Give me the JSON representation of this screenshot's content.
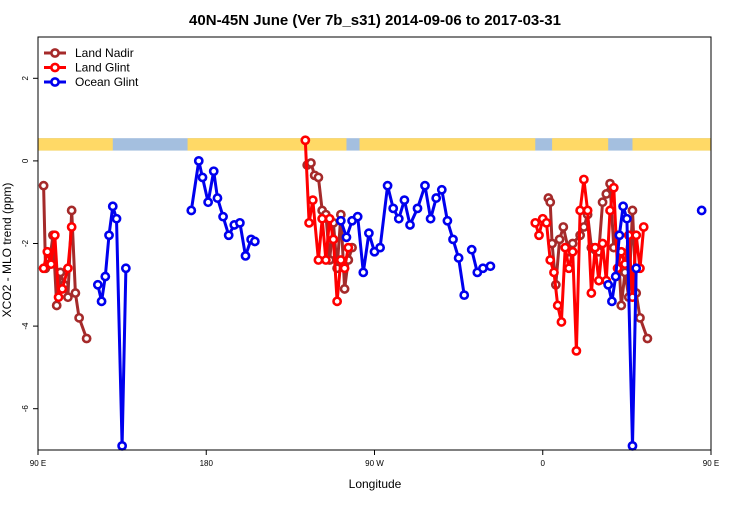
{
  "chart_data": {
    "type": "line",
    "title": "40N-45N June (Ver 7b_s31)   2014-09-06 to 2017-03-31",
    "xlabel": "Longitude",
    "ylabel": "XCO2 - MLO trend (ppm)",
    "xlim": [
      90,
      450
    ],
    "ylim": [
      -7,
      3
    ],
    "x_ticks": [
      {
        "value": 90,
        "label": "90 E"
      },
      {
        "value": 180,
        "label": "180"
      },
      {
        "value": 270,
        "label": "90 W"
      },
      {
        "value": 360,
        "label": "0"
      },
      {
        "value": 450,
        "label": "90 E"
      },
      {
        "value": 540,
        "label": "180"
      }
    ],
    "y_ticks": [
      {
        "value": 2,
        "label": "2"
      },
      {
        "value": 0,
        "label": "0"
      },
      {
        "value": -2,
        "label": "-2"
      },
      {
        "value": -4,
        "label": "-4"
      },
      {
        "value": -6,
        "label": "-6"
      }
    ],
    "grid": false,
    "legend_position": "top-left",
    "land_sea_strip": {
      "y_top": 0.55,
      "y_bottom": 0.25,
      "land_color": "#FFD966",
      "ocean_color": "#A4BFDF",
      "land_ranges": [
        [
          90,
          130
        ],
        [
          170,
          255
        ],
        [
          262,
          356
        ],
        [
          365,
          395
        ],
        [
          408,
          482
        ]
      ]
    },
    "series": [
      {
        "name": "Land Nadir",
        "color": "#A52A2A",
        "points": [
          [
            93,
            -0.6
          ],
          [
            94,
            -2.6
          ],
          [
            96,
            -2.5
          ],
          [
            98,
            -1.8
          ],
          [
            100,
            -3.5
          ],
          [
            102,
            -2.7
          ],
          [
            104,
            -3.0
          ],
          [
            106,
            -3.3
          ],
          [
            108,
            -1.2
          ],
          [
            110,
            -3.2
          ],
          [
            112,
            -3.8
          ],
          [
            116,
            -4.3
          ],
          null,
          [
            234,
            -0.1
          ],
          [
            236,
            -0.05
          ],
          [
            238,
            -0.35
          ],
          [
            240,
            -0.4
          ],
          [
            242,
            -1.2
          ],
          [
            244,
            -1.3
          ],
          [
            246,
            -2.4
          ],
          [
            248,
            -1.5
          ],
          [
            250,
            -2.6
          ],
          [
            252,
            -1.3
          ],
          [
            254,
            -3.1
          ],
          [
            256,
            -2.4
          ],
          [
            258,
            -2.1
          ],
          null,
          [
            363,
            -0.9
          ],
          [
            364,
            -1.0
          ],
          [
            365,
            -2.0
          ],
          [
            367,
            -3.0
          ],
          [
            369,
            -1.9
          ],
          [
            371,
            -1.6
          ],
          [
            374,
            -2.2
          ],
          [
            376,
            -2.0
          ],
          [
            380,
            -1.8
          ],
          [
            382,
            -1.6
          ],
          [
            384,
            -1.3
          ],
          [
            386,
            -2.1
          ],
          [
            388,
            -2.15
          ],
          [
            390,
            -2.2
          ],
          [
            392,
            -1.0
          ],
          [
            394,
            -0.8
          ],
          [
            396,
            -0.55
          ],
          [
            398,
            -2.1
          ],
          [
            400,
            -1.8
          ],
          [
            402,
            -3.5
          ],
          [
            404,
            -2.7
          ],
          [
            406,
            -3.3
          ],
          [
            408,
            -1.2
          ],
          [
            410,
            -3.2
          ],
          [
            412,
            -3.8
          ],
          [
            416,
            -4.3
          ]
        ]
      },
      {
        "name": "Land Glint",
        "color": "#FF0000",
        "points": [
          [
            93,
            -2.6
          ],
          [
            95,
            -2.2
          ],
          [
            97,
            -2.5
          ],
          [
            99,
            -1.8
          ],
          [
            101,
            -3.3
          ],
          [
            103,
            -3.1
          ],
          [
            106,
            -2.6
          ],
          [
            108,
            -1.6
          ],
          null,
          [
            233,
            0.5
          ],
          [
            235,
            -1.5
          ],
          [
            237,
            -0.95
          ],
          [
            240,
            -2.4
          ],
          [
            242,
            -1.4
          ],
          [
            244,
            -2.4
          ],
          [
            246,
            -1.4
          ],
          [
            248,
            -1.9
          ],
          [
            250,
            -3.4
          ],
          [
            252,
            -2.4
          ],
          [
            254,
            -2.6
          ],
          [
            256,
            -2.1
          ],
          null,
          [
            356,
            -1.5
          ],
          [
            358,
            -1.8
          ],
          [
            360,
            -1.4
          ],
          [
            362,
            -1.5
          ],
          [
            364,
            -2.4
          ],
          [
            366,
            -2.7
          ],
          [
            368,
            -3.5
          ],
          [
            370,
            -3.9
          ],
          [
            372,
            -2.1
          ],
          [
            374,
            -2.6
          ],
          [
            376,
            -2.2
          ],
          [
            378,
            -4.6
          ],
          [
            380,
            -1.2
          ],
          [
            382,
            -0.45
          ],
          [
            384,
            -1.2
          ],
          [
            386,
            -3.2
          ],
          [
            388,
            -2.1
          ],
          [
            390,
            -2.9
          ],
          [
            392,
            -2.0
          ],
          [
            394,
            -2.9
          ],
          [
            396,
            -1.2
          ],
          [
            398,
            -0.65
          ],
          [
            400,
            -2.6
          ],
          [
            402,
            -2.2
          ],
          [
            404,
            -2.5
          ],
          [
            406,
            -1.8
          ],
          [
            408,
            -3.3
          ],
          [
            410,
            -1.8
          ],
          [
            412,
            -2.6
          ],
          [
            414,
            -1.6
          ]
        ]
      },
      {
        "name": "Ocean Glint",
        "color": "#0000EE",
        "points": [
          [
            122,
            -3.0
          ],
          [
            124,
            -3.4
          ],
          [
            126,
            -2.8
          ],
          [
            128,
            -1.8
          ],
          [
            130,
            -1.1
          ],
          [
            132,
            -1.4
          ],
          [
            135,
            -6.9
          ],
          [
            137,
            -2.6
          ],
          null,
          [
            172,
            -1.2
          ],
          [
            176,
            0.0
          ],
          [
            178,
            -0.4
          ],
          [
            181,
            -1.0
          ],
          [
            184,
            -0.25
          ],
          [
            186,
            -0.9
          ],
          [
            189,
            -1.35
          ],
          [
            192,
            -1.8
          ],
          [
            195,
            -1.55
          ],
          [
            198,
            -1.5
          ],
          [
            201,
            -2.3
          ],
          [
            204,
            -1.9
          ],
          [
            206,
            -1.95
          ],
          null,
          [
            252,
            -1.45
          ],
          [
            255,
            -1.85
          ],
          [
            258,
            -1.45
          ],
          [
            261,
            -1.35
          ],
          [
            264,
            -2.7
          ],
          [
            267,
            -1.75
          ],
          [
            270,
            -2.2
          ],
          [
            273,
            -2.1
          ],
          [
            277,
            -0.6
          ],
          [
            280,
            -1.15
          ],
          [
            283,
            -1.4
          ],
          [
            286,
            -0.95
          ],
          [
            289,
            -1.55
          ],
          [
            293,
            -1.15
          ],
          [
            297,
            -0.6
          ],
          [
            300,
            -1.4
          ],
          [
            303,
            -0.9
          ],
          [
            306,
            -0.7
          ],
          [
            309,
            -1.45
          ],
          [
            312,
            -1.9
          ],
          [
            315,
            -2.35
          ],
          [
            318,
            -3.25
          ],
          null,
          [
            322,
            -2.15
          ],
          [
            325,
            -2.7
          ],
          [
            328,
            -2.6
          ],
          null,
          [
            332,
            -2.55
          ],
          null,
          [
            395,
            -3.0
          ],
          [
            397,
            -3.4
          ],
          [
            399,
            -2.8
          ],
          [
            401,
            -1.8
          ],
          [
            403,
            -1.1
          ],
          [
            405,
            -1.4
          ],
          [
            408,
            -6.9
          ],
          [
            410,
            -2.6
          ],
          null,
          [
            445,
            -1.2
          ]
        ]
      }
    ]
  }
}
